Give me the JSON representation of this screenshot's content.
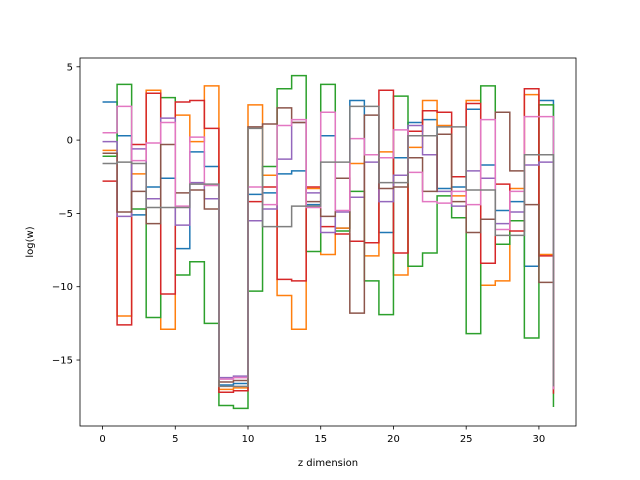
{
  "chart_data": {
    "type": "line",
    "step": "post",
    "xlabel": "z dimension",
    "ylabel": "log(w)",
    "xlim": [
      -1.55,
      32.55
    ],
    "ylim": [
      -19.5,
      5.6
    ],
    "xticks": [
      0,
      5,
      10,
      15,
      20,
      25,
      30
    ],
    "yticks": [
      5,
      0,
      -5,
      -10,
      -15
    ],
    "x": [
      0,
      1,
      2,
      3,
      4,
      5,
      6,
      7,
      8,
      9,
      10,
      11,
      12,
      13,
      14,
      15,
      16,
      17,
      18,
      19,
      20,
      21,
      22,
      23,
      24,
      25,
      26,
      27,
      28,
      29,
      30,
      31
    ],
    "series": [
      {
        "color": "#1f77b4",
        "values": [
          2.6,
          0.3,
          -5.1,
          -3.2,
          -2.6,
          -7.4,
          -0.8,
          -1.8,
          -16.7,
          -16.6,
          -3.7,
          -3.6,
          -2.3,
          -2.1,
          -4.4,
          0.3,
          -6.0,
          2.7,
          -1.0,
          -6.3,
          -1.2,
          1.2,
          1.4,
          -3.3,
          -3.2,
          2.1,
          -1.7,
          -4.8,
          -4.2,
          -8.6,
          2.7,
          -16.5
        ]
      },
      {
        "color": "#ff7f0e",
        "values": [
          -0.7,
          -12.0,
          -2.3,
          3.4,
          -12.9,
          1.7,
          -0.1,
          3.7,
          -17.0,
          -16.9,
          2.4,
          -2.4,
          -10.6,
          -12.9,
          -3.3,
          -7.8,
          -6.0,
          -1.6,
          -7.9,
          -0.8,
          -9.2,
          -0.5,
          2.7,
          1.0,
          -3.8,
          2.7,
          -9.9,
          -9.6,
          -3.3,
          3.1,
          -7.8,
          -17.0
        ]
      },
      {
        "color": "#2ca02c",
        "values": [
          -1.1,
          3.8,
          -4.7,
          -12.1,
          2.9,
          -9.2,
          -8.3,
          -12.5,
          -18.1,
          -18.3,
          -10.3,
          -1.8,
          3.5,
          4.4,
          -7.6,
          3.8,
          -6.2,
          -3.5,
          -9.6,
          -11.9,
          3.0,
          -8.6,
          -7.7,
          -3.8,
          -5.3,
          -13.2,
          3.7,
          -7.1,
          -5.5,
          -13.5,
          2.4,
          -18.2
        ]
      },
      {
        "color": "#d62728",
        "values": [
          -2.8,
          -12.6,
          -0.3,
          3.2,
          -10.5,
          2.6,
          2.7,
          0.8,
          -17.2,
          -17.1,
          -4.2,
          -3.2,
          -9.5,
          -9.6,
          -3.2,
          -5.9,
          -6.4,
          -6.9,
          -7.0,
          3.4,
          -7.7,
          0.6,
          2.0,
          1.9,
          -2.5,
          2.5,
          -8.4,
          -3.0,
          -6.2,
          3.5,
          -7.9,
          -17.3
        ]
      },
      {
        "color": "#9467bd",
        "values": [
          -0.1,
          -5.2,
          -0.6,
          -4.0,
          1.5,
          -5.8,
          -2.9,
          -4.0,
          -16.2,
          -16.1,
          -5.5,
          -4.7,
          -1.3,
          1.2,
          -3.6,
          -6.3,
          -4.9,
          -3.9,
          -1.5,
          -4.2,
          -2.4,
          1.0,
          -1.0,
          -3.5,
          -4.5,
          -2.1,
          -2.6,
          -5.7,
          -4.9,
          -1.7,
          -1.5,
          -16.9
        ]
      },
      {
        "color": "#8c564b",
        "values": [
          -0.9,
          -4.9,
          -3.5,
          -5.7,
          -0.3,
          -3.6,
          -3.4,
          -4.7,
          -16.5,
          -16.4,
          0.9,
          1.1,
          2.2,
          1.2,
          -4.2,
          -5.2,
          -2.6,
          -11.8,
          1.7,
          -3.3,
          -3.2,
          -1.2,
          -3.5,
          0.4,
          -4.2,
          -6.3,
          -5.4,
          1.9,
          -2.1,
          -4.4,
          -9.7,
          -17.0
        ]
      },
      {
        "color": "#e377c2",
        "values": [
          0.5,
          2.3,
          -1.4,
          -0.2,
          1.2,
          -4.5,
          0.2,
          -3.1,
          -16.3,
          -16.2,
          -3.2,
          -4.4,
          1.0,
          1.4,
          -4.6,
          1.9,
          -4.8,
          0.1,
          -1.0,
          -1.2,
          0.7,
          -2.2,
          -4.2,
          -4.3,
          -3.5,
          -4.4,
          1.4,
          -6.1,
          -3.5,
          1.6,
          1.6,
          -17.0
        ]
      },
      {
        "color": "#7f7f7f",
        "values": [
          -1.6,
          -1.5,
          -1.6,
          -4.6,
          -4.6,
          -4.6,
          -3.0,
          -3.0,
          -16.8,
          -16.8,
          0.8,
          -5.9,
          -5.9,
          -4.5,
          -4.5,
          -1.5,
          -1.5,
          2.3,
          2.3,
          -2.9,
          -2.9,
          0.3,
          0.3,
          0.9,
          0.9,
          -3.4,
          -3.4,
          -6.5,
          -6.5,
          -1.0,
          -1.0,
          -16.8
        ]
      }
    ]
  }
}
